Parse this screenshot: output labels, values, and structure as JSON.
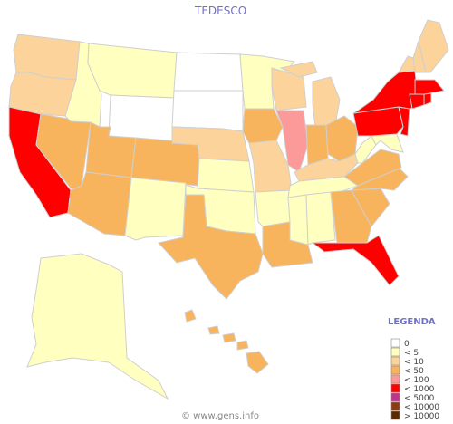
{
  "title": "TEDESCO",
  "legend": {
    "title": "LEGENDA",
    "items": [
      {
        "label": "0",
        "color": "#ffffff"
      },
      {
        "label": "< 5",
        "color": "#ffffc0"
      },
      {
        "label": "< 10",
        "color": "#fcd39a"
      },
      {
        "label": "< 50",
        "color": "#f7b45c"
      },
      {
        "label": "< 100",
        "color": "#fc9a9a"
      },
      {
        "label": "< 1000",
        "color": "#ff0000"
      },
      {
        "label": "< 5000",
        "color": "#c0338c"
      },
      {
        "label": "< 10000",
        "color": "#8c3c14"
      },
      {
        "label": "> 10000",
        "color": "#5a2a00"
      }
    ]
  },
  "footer": "© www.gens.info"
}
